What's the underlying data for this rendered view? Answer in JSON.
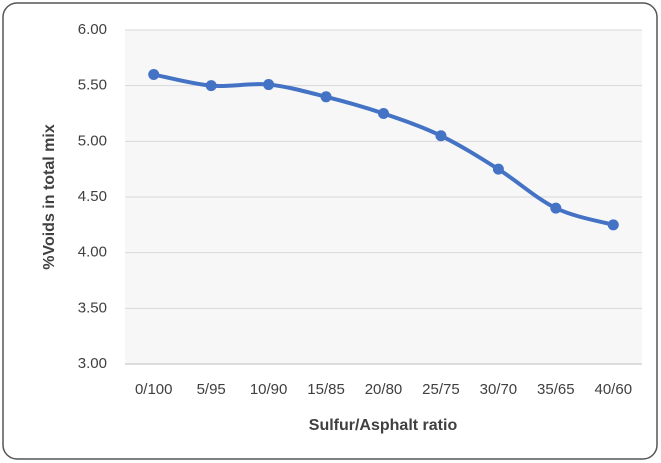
{
  "chart_data": {
    "type": "line",
    "x_label": "Sulfur/Asphalt ratio",
    "y_label": "%Voids in total mix",
    "categories": [
      "0/100",
      "5/95",
      "10/90",
      "15/85",
      "20/80",
      "25/75",
      "30/70",
      "35/65",
      "40/60"
    ],
    "series": [
      {
        "name": "%Voids",
        "color": "#4472c4",
        "values": [
          5.6,
          5.5,
          5.51,
          5.4,
          5.25,
          5.05,
          4.75,
          4.4,
          4.25
        ]
      }
    ],
    "ylim": [
      3,
      6
    ],
    "yticks": [
      {
        "value": 3,
        "label": "3.00"
      },
      {
        "value": 3.5,
        "label": "3.50"
      },
      {
        "value": 4,
        "label": "4.00"
      },
      {
        "value": 4.5,
        "label": "4.50"
      },
      {
        "value": 5,
        "label": "5.00"
      },
      {
        "value": 5.5,
        "label": "5.50"
      },
      {
        "value": 6,
        "label": "6.00"
      }
    ],
    "grid": true
  }
}
